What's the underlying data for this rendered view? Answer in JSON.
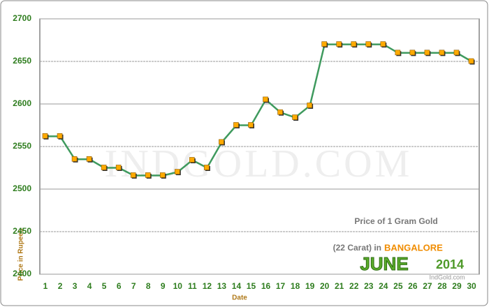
{
  "chart_data": {
    "type": "line",
    "y_label": "Price in Rupees",
    "x_label": "Date",
    "categories": [
      1,
      2,
      3,
      4,
      5,
      6,
      7,
      8,
      9,
      10,
      11,
      12,
      13,
      14,
      15,
      16,
      17,
      18,
      19,
      20,
      21,
      22,
      23,
      24,
      25,
      26,
      27,
      28,
      29,
      30
    ],
    "series": [
      {
        "name": "Price of 1 Gram Gold",
        "color": "#3f9a5e",
        "values": [
          2562,
          2562,
          2535,
          2535,
          2525,
          2525,
          2516,
          2516,
          2516,
          2520,
          2534,
          2525,
          2555,
          2575,
          2575,
          2605,
          2590,
          2584,
          2598,
          2670,
          2670,
          2670,
          2670,
          2670,
          2660,
          2660,
          2660,
          2660,
          2660,
          2650
        ]
      }
    ],
    "marker_color": "#ffaa00",
    "ylim": [
      2400,
      2700
    ],
    "yticks": [
      2400,
      2450,
      2500,
      2550,
      2600,
      2650,
      2700
    ],
    "grid": true,
    "annotation": {
      "line1": "Price of 1 Gram Gold",
      "line2": "(22 Carat) in",
      "city": "BANGALORE",
      "month": "JUNE",
      "year": "2014",
      "site": "IndGold.com"
    },
    "watermark": "IndGold.com"
  }
}
